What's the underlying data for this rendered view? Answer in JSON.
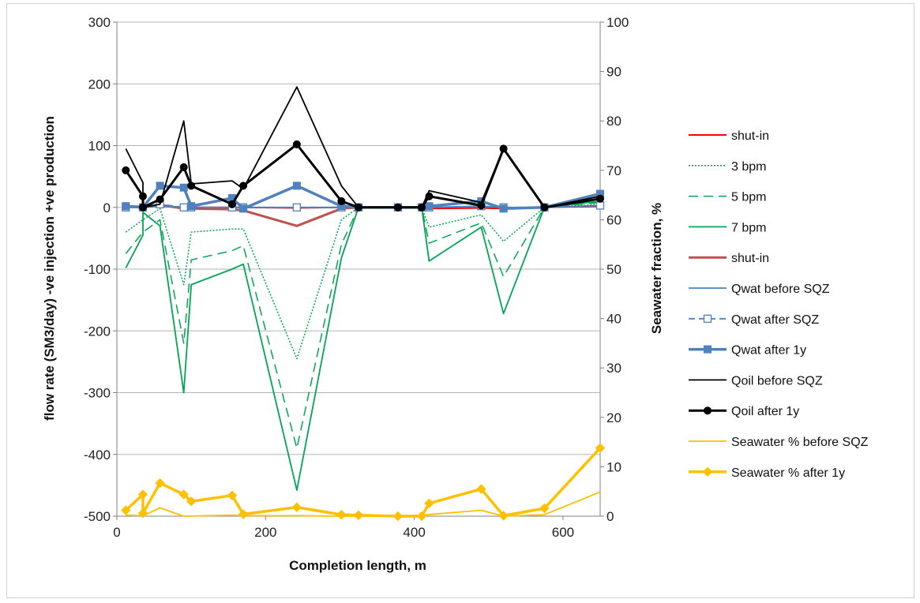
{
  "chart_data": {
    "type": "line",
    "xlabel": "Completion length, m",
    "ylabel": "flow rate (SM3/day) -ve injection +ve production",
    "y2label": "Seawater fraction, %",
    "xlim": [
      0,
      650
    ],
    "ylim": [
      -500,
      300
    ],
    "y2lim": [
      0,
      100
    ],
    "x_ticks": [
      0,
      200,
      400,
      600
    ],
    "y_ticks": [
      -500,
      -400,
      -300,
      -200,
      -100,
      0,
      100,
      200,
      300
    ],
    "y2_ticks": [
      0,
      10,
      20,
      30,
      40,
      50,
      60,
      70,
      80,
      90,
      100
    ],
    "grid": "horizontal",
    "legend_position": "right",
    "series": [
      {
        "name": "shut-in",
        "axis": "left",
        "color": "#ff0000",
        "width": 2,
        "dash": "",
        "marker": "none",
        "x": [
          12,
          35,
          58,
          90,
          100,
          155,
          170,
          242,
          302,
          325,
          378,
          410,
          420,
          490,
          520,
          575,
          650
        ],
        "y": [
          2,
          1,
          2,
          0,
          0,
          0,
          0,
          -1,
          0,
          0,
          0,
          0,
          -2,
          -1,
          -2,
          0,
          2
        ]
      },
      {
        "name": "3 bpm",
        "axis": "left",
        "color": "#00a651",
        "width": 1.5,
        "dash": "2 2",
        "marker": "none",
        "x": [
          12,
          35,
          58,
          90,
          100,
          155,
          170,
          242,
          302,
          325,
          378,
          410,
          420,
          490,
          520,
          575,
          650
        ],
        "y": [
          -40,
          -20,
          -2,
          -125,
          -40,
          -35,
          -35,
          -245,
          -20,
          0,
          0,
          0,
          -32,
          -12,
          -55,
          0,
          5
        ]
      },
      {
        "name": "5 bpm",
        "axis": "left",
        "color": "#00a651",
        "width": 1.5,
        "dash": "12 7",
        "marker": "none",
        "x": [
          12,
          35,
          58,
          90,
          100,
          155,
          170,
          242,
          302,
          325,
          378,
          410,
          420,
          490,
          520,
          575,
          650
        ],
        "y": [
          -75,
          -40,
          -20,
          -220,
          -85,
          -70,
          -62,
          -390,
          -60,
          0,
          0,
          0,
          -58,
          -25,
          -112,
          0,
          8
        ]
      },
      {
        "name": "7 bpm",
        "axis": "left",
        "color": "#00a651",
        "width": 1.8,
        "dash": "",
        "marker": "none",
        "x": [
          12,
          35,
          35,
          58,
          90,
          100,
          155,
          170,
          242,
          302,
          325,
          378,
          410,
          420,
          490,
          520,
          575,
          650
        ],
        "y": [
          -98,
          -45,
          -8,
          -30,
          -300,
          -125,
          -100,
          -92,
          -458,
          -82,
          0,
          0,
          0,
          -87,
          -32,
          -172,
          0,
          10
        ]
      },
      {
        "name": "shut-in",
        "axis": "left",
        "color": "#c0504d",
        "width": 3,
        "dash": "",
        "marker": "none",
        "x": [
          12,
          35,
          58,
          90,
          100,
          155,
          170,
          242,
          302,
          325,
          378,
          410
        ],
        "y": [
          2,
          1,
          4,
          -2,
          -2,
          -3,
          -5,
          -30,
          -2,
          0,
          0,
          0
        ]
      },
      {
        "name": "Qwat before SQZ",
        "axis": "left",
        "color": "#4f81bd",
        "width": 1.8,
        "dash": "",
        "marker": "none",
        "x": [
          12,
          35,
          58,
          90,
          100,
          155,
          170,
          242,
          302,
          325,
          378,
          410,
          420,
          490,
          520,
          575,
          650
        ],
        "y": [
          0,
          0,
          2,
          0,
          0,
          0,
          0,
          0,
          0,
          0,
          0,
          0,
          0,
          2,
          0,
          0,
          3
        ]
      },
      {
        "name": "Qwat after SQZ",
        "axis": "left",
        "color": "#4f81bd",
        "width": 1.8,
        "dash": "8 5",
        "marker": "open-square",
        "x": [
          12,
          35,
          58,
          90,
          100,
          155,
          170,
          242,
          302,
          325,
          378,
          410,
          420,
          490,
          520,
          575,
          650
        ],
        "y": [
          0,
          0,
          5,
          0,
          0,
          0,
          0,
          0,
          0,
          0,
          0,
          0,
          0,
          2,
          0,
          0,
          3
        ]
      },
      {
        "name": "Qwat after 1y",
        "axis": "left",
        "color": "#4f81bd",
        "width": 3.5,
        "dash": "",
        "marker": "square",
        "x": [
          12,
          35,
          58,
          90,
          100,
          155,
          170,
          242,
          302,
          325,
          378,
          410,
          420,
          490,
          520,
          575,
          650
        ],
        "y": [
          2,
          0,
          35,
          32,
          2,
          15,
          -2,
          35,
          2,
          0,
          0,
          0,
          2,
          10,
          -2,
          0,
          22
        ]
      },
      {
        "name": "Qoil before SQZ",
        "axis": "left",
        "color": "#000000",
        "width": 1.8,
        "dash": "",
        "marker": "none",
        "x": [
          12,
          35,
          35,
          58,
          90,
          100,
          155,
          170,
          242,
          302,
          325,
          378,
          410,
          420,
          490,
          520,
          575,
          650
        ],
        "y": [
          95,
          40,
          0,
          5,
          140,
          38,
          43,
          30,
          195,
          35,
          0,
          0,
          0,
          27,
          8,
          95,
          0,
          18
        ]
      },
      {
        "name": "Qoil after 1y",
        "axis": "left",
        "color": "#000000",
        "width": 3,
        "dash": "",
        "marker": "circle",
        "x": [
          12,
          35,
          35,
          58,
          90,
          100,
          155,
          170,
          242,
          302,
          325,
          378,
          410,
          420,
          490,
          520,
          575,
          650
        ],
        "y": [
          60,
          18,
          0,
          13,
          65,
          35,
          5,
          35,
          102,
          10,
          0,
          0,
          0,
          18,
          3,
          95,
          0,
          14
        ]
      },
      {
        "name": "Seawater % before SQZ",
        "axis": "right",
        "color": "#ffc000",
        "width": 1.8,
        "dash": "",
        "marker": "none",
        "x": [
          12,
          35,
          58,
          90,
          155,
          170,
          242,
          302,
          325,
          378,
          410,
          490,
          520,
          575,
          650
        ],
        "y": [
          0.2,
          0.1,
          1.7,
          0,
          0.2,
          0.1,
          0.1,
          0,
          0,
          0,
          0.2,
          1.2,
          0,
          0.3,
          4.9
        ]
      },
      {
        "name": "Seawater %  after 1y",
        "axis": "right",
        "color": "#ffc000",
        "width": 3.5,
        "dash": "",
        "marker": "diamond",
        "x": [
          12,
          35,
          35,
          58,
          90,
          100,
          155,
          170,
          242,
          302,
          325,
          378,
          410,
          420,
          490,
          520,
          575,
          650
        ],
        "y": [
          1.2,
          4.4,
          0.6,
          6.7,
          4.4,
          3.0,
          4.2,
          0.4,
          1.8,
          0.3,
          0.2,
          0,
          0,
          2.6,
          5.5,
          0.1,
          1.6,
          13.8
        ]
      }
    ]
  }
}
